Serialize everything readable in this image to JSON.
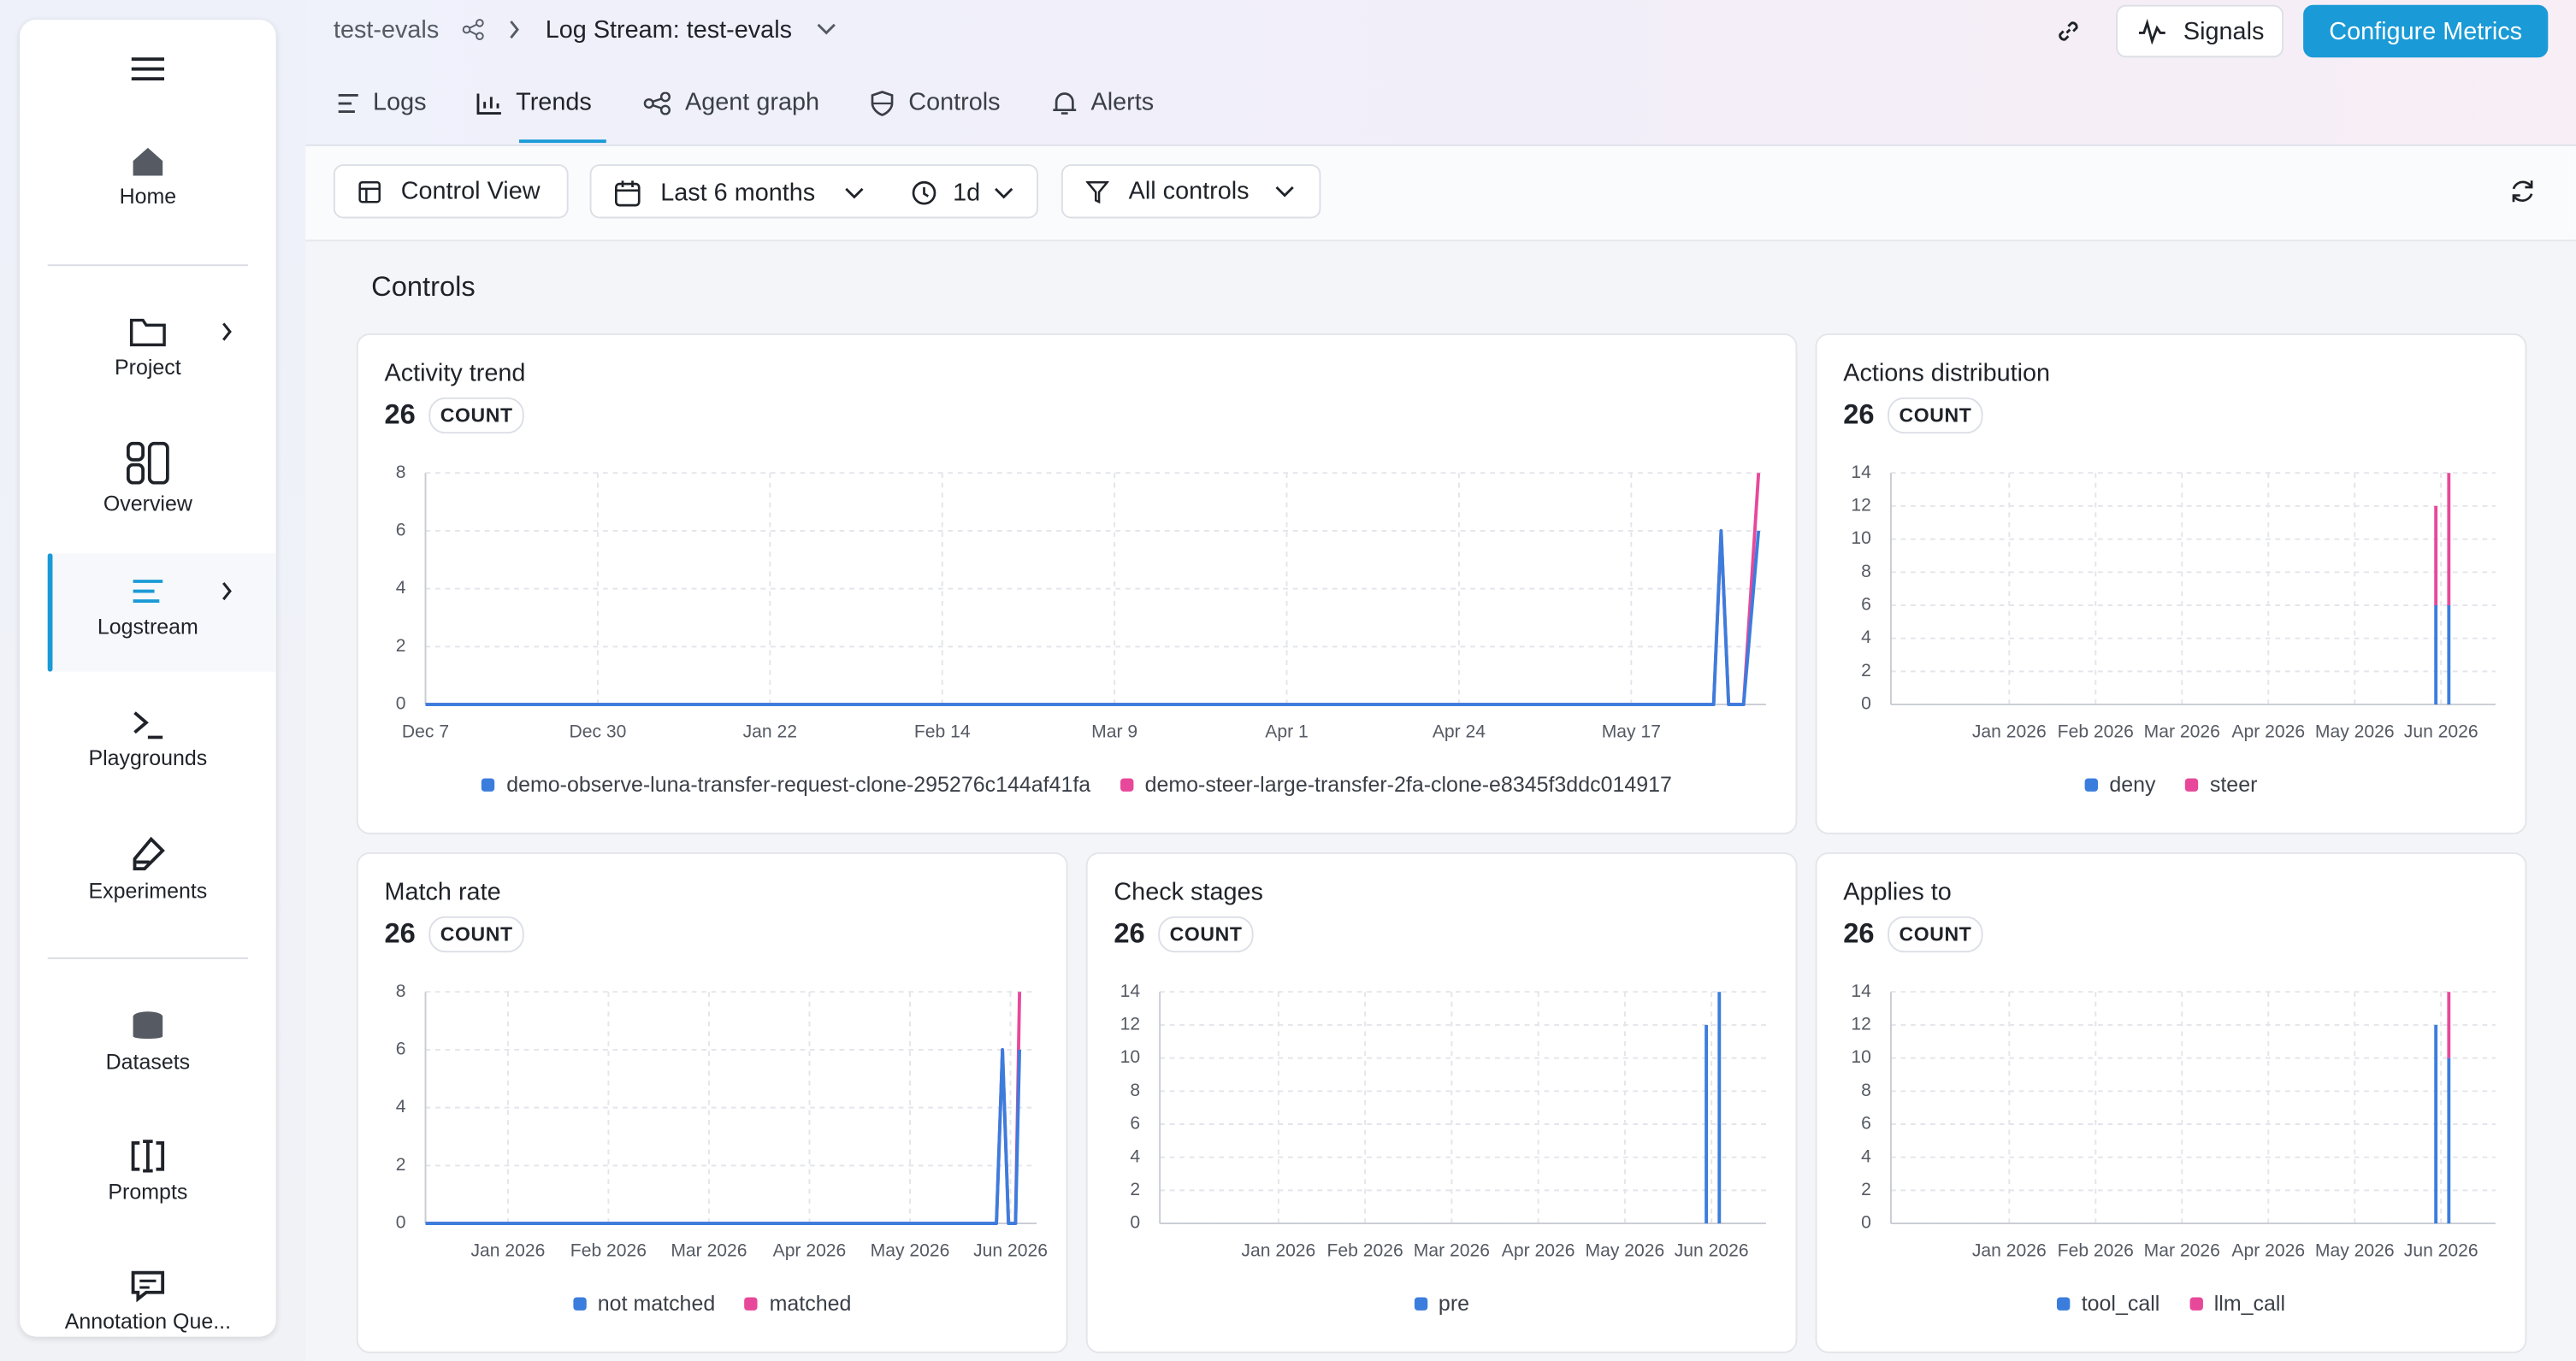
{
  "breadcrumb": {
    "project": "test-evals",
    "stream": "Log Stream: test-evals"
  },
  "actions": {
    "signals": "Signals",
    "configure": "Configure Metrics"
  },
  "nav": [
    "Home",
    "Project",
    "Overview",
    "Logstream",
    "Playgrounds",
    "Experiments",
    "Datasets",
    "Prompts",
    "Annotation Que..."
  ],
  "tabs": [
    "Logs",
    "Trends",
    "Agent graph",
    "Controls",
    "Alerts"
  ],
  "toolbar": {
    "view": "Control View",
    "range": "Last 6 months",
    "interval": "1d",
    "filter": "All controls"
  },
  "section_title": "Controls",
  "chart_data": [
    {
      "type": "line",
      "title": "Activity trend",
      "total": 26,
      "unit": "COUNT",
      "stacked": true,
      "grid": true,
      "x": [
        0,
        172,
        173,
        174,
        176,
        178
      ],
      "xlim": [
        0,
        179
      ],
      "xticks": [
        {
          "value": 0,
          "label": "Dec 7"
        },
        {
          "value": 23,
          "label": "Dec 30"
        },
        {
          "value": 46,
          "label": "Jan 22"
        },
        {
          "value": 69,
          "label": "Feb 14"
        },
        {
          "value": 92,
          "label": "Mar 9"
        },
        {
          "value": 115,
          "label": "Apr 1"
        },
        {
          "value": 138,
          "label": "Apr 24"
        },
        {
          "value": 161,
          "label": "May 17"
        }
      ],
      "ylim": [
        0,
        8
      ],
      "yticks": [
        0,
        2,
        4,
        6,
        8
      ],
      "series": [
        {
          "name": "demo-observe-luna-transfer-request-clone-295276c144af41fa",
          "color": "#3b7ddd",
          "values": [
            0,
            0,
            6,
            0,
            0,
            6
          ]
        },
        {
          "name": "demo-steer-large-transfer-2fa-clone-e8345f3ddc014917",
          "color": "#e8489a",
          "values": [
            0,
            0,
            0,
            0,
            0,
            2
          ]
        }
      ]
    },
    {
      "type": "bar",
      "title": "Actions distribution",
      "total": 26,
      "unit": "COUNT",
      "stacked": true,
      "grid": true,
      "x": [
        5.94,
        6.09
      ],
      "xlim": [
        -0.37,
        6.63
      ],
      "xticks": [
        {
          "value": 1,
          "label": "Jan 2026"
        },
        {
          "value": 2,
          "label": "Feb 2026"
        },
        {
          "value": 3,
          "label": "Mar 2026"
        },
        {
          "value": 4,
          "label": "Apr 2026"
        },
        {
          "value": 5,
          "label": "May 2026"
        },
        {
          "value": 6,
          "label": "Jun 2026"
        }
      ],
      "ylim": [
        0,
        14
      ],
      "yticks": [
        0,
        2,
        4,
        6,
        8,
        10,
        12,
        14
      ],
      "series": [
        {
          "name": "deny",
          "color": "#3b7ddd",
          "values": [
            6,
            6
          ]
        },
        {
          "name": "steer",
          "color": "#e8489a",
          "values": [
            6,
            8
          ]
        }
      ]
    },
    {
      "type": "line",
      "title": "Match rate",
      "total": 26,
      "unit": "COUNT",
      "stacked": true,
      "grid": true,
      "x": [
        0.18,
        5.86,
        5.92,
        5.98,
        6.05,
        6.09
      ],
      "xlim": [
        0.18,
        6.26
      ],
      "xticks": [
        {
          "value": 1,
          "label": "Jan 2026"
        },
        {
          "value": 2,
          "label": "Feb 2026"
        },
        {
          "value": 3,
          "label": "Mar 2026"
        },
        {
          "value": 4,
          "label": "Apr 2026"
        },
        {
          "value": 5,
          "label": "May 2026"
        },
        {
          "value": 6,
          "label": "Jun 2026"
        }
      ],
      "ylim": [
        0,
        8
      ],
      "yticks": [
        0,
        2,
        4,
        6,
        8
      ],
      "series": [
        {
          "name": "not matched",
          "color": "#3b7ddd",
          "values": [
            0,
            0,
            6,
            0,
            0,
            6
          ]
        },
        {
          "name": "matched",
          "color": "#e8489a",
          "values": [
            0,
            0,
            0,
            0,
            0,
            2
          ]
        }
      ]
    },
    {
      "type": "bar",
      "title": "Check stages",
      "total": 26,
      "unit": "COUNT",
      "stacked": true,
      "grid": true,
      "x": [
        5.94,
        6.09
      ],
      "xlim": [
        -0.37,
        6.63
      ],
      "xticks": [
        {
          "value": 1,
          "label": "Jan 2026"
        },
        {
          "value": 2,
          "label": "Feb 2026"
        },
        {
          "value": 3,
          "label": "Mar 2026"
        },
        {
          "value": 4,
          "label": "Apr 2026"
        },
        {
          "value": 5,
          "label": "May 2026"
        },
        {
          "value": 6,
          "label": "Jun 2026"
        }
      ],
      "ylim": [
        0,
        14
      ],
      "yticks": [
        0,
        2,
        4,
        6,
        8,
        10,
        12,
        14
      ],
      "series": [
        {
          "name": "pre",
          "color": "#3b7ddd",
          "values": [
            12,
            14
          ]
        }
      ]
    },
    {
      "type": "bar",
      "title": "Applies to",
      "total": 26,
      "unit": "COUNT",
      "stacked": true,
      "grid": true,
      "x": [
        5.94,
        6.09
      ],
      "xlim": [
        -0.37,
        6.63
      ],
      "xticks": [
        {
          "value": 1,
          "label": "Jan 2026"
        },
        {
          "value": 2,
          "label": "Feb 2026"
        },
        {
          "value": 3,
          "label": "Mar 2026"
        },
        {
          "value": 4,
          "label": "Apr 2026"
        },
        {
          "value": 5,
          "label": "May 2026"
        },
        {
          "value": 6,
          "label": "Jun 2026"
        }
      ],
      "ylim": [
        0,
        14
      ],
      "yticks": [
        0,
        2,
        4,
        6,
        8,
        10,
        12,
        14
      ],
      "series": [
        {
          "name": "tool_call",
          "color": "#3b7ddd",
          "values": [
            12,
            10
          ]
        },
        {
          "name": "llm_call",
          "color": "#e8489a",
          "values": [
            0,
            4
          ]
        }
      ]
    }
  ]
}
